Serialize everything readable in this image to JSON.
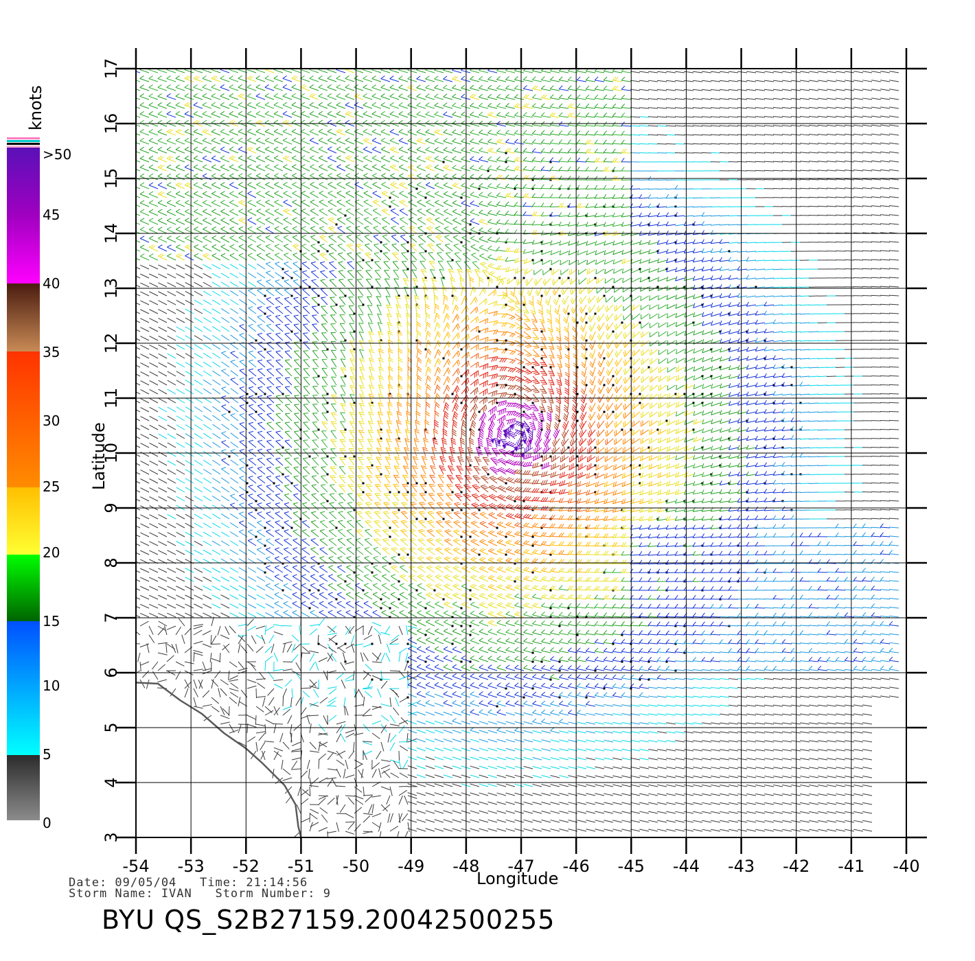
{
  "colorbar": {
    "unit_label": "knots",
    "labels": [
      ">50",
      "45",
      "40",
      "35",
      "30",
      "25",
      "20",
      "15",
      "10",
      "5",
      "0"
    ]
  },
  "chart_data": {
    "type": "wind_barb_map",
    "xlabel": "Longitude",
    "ylabel": "Latitude",
    "xlim": [
      -54,
      -40
    ],
    "ylim": [
      3,
      17
    ],
    "x_ticks": [
      "-54",
      "-53",
      "-52",
      "-51",
      "-50",
      "-49",
      "-48",
      "-47",
      "-46",
      "-45",
      "-44",
      "-43",
      "-42",
      "-41",
      "-40"
    ],
    "y_ticks": [
      "3",
      "4",
      "5",
      "6",
      "7",
      "8",
      "9",
      "10",
      "11",
      "12",
      "13",
      "14",
      "15",
      "16",
      "17"
    ],
    "grid": true,
    "storm_center": {
      "lon": -47.1,
      "lat": 10.3
    },
    "coastline": [
      [
        -54,
        5.82
      ],
      [
        -53.6,
        5.8
      ],
      [
        -53.2,
        5.5
      ],
      [
        -52.8,
        5.25
      ],
      [
        -52.4,
        4.9
      ],
      [
        -52.0,
        4.62
      ],
      [
        -51.7,
        4.35
      ],
      [
        -51.5,
        4.15
      ],
      [
        -51.3,
        3.95
      ],
      [
        -51.1,
        3.6
      ],
      [
        -51.05,
        3.2
      ],
      [
        -51.0,
        3.0
      ]
    ],
    "speed_scale_knots": [
      0,
      5,
      10,
      15,
      20,
      25,
      30,
      35,
      40,
      45,
      50
    ]
  },
  "meta": {
    "date_line": "Date: 09/05/04   Time: 21:14:56",
    "storm_line": "Storm Name: IVAN   Storm Number: 9"
  },
  "file_title": "BYU  QS_S2B27159.20042500255"
}
